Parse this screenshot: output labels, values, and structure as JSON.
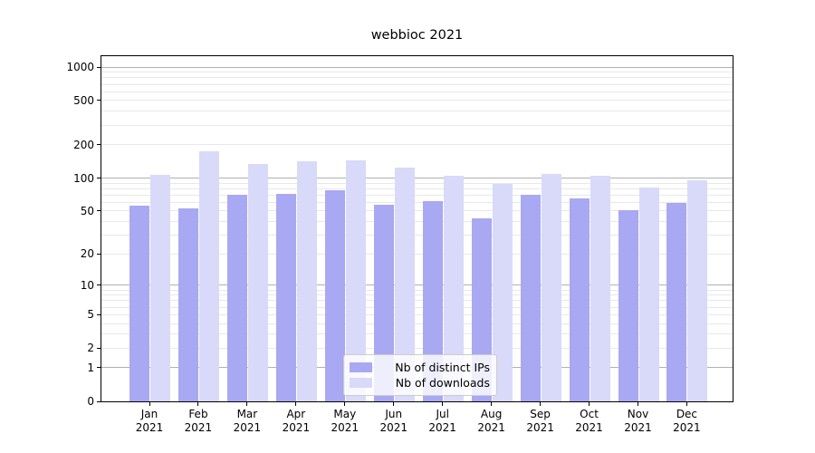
{
  "chart_data": {
    "type": "bar",
    "title": "webbioc 2021",
    "x_tick_months": [
      "Jan",
      "Feb",
      "Mar",
      "Apr",
      "May",
      "Jun",
      "Jul",
      "Aug",
      "Sep",
      "Oct",
      "Nov",
      "Dec"
    ],
    "x_tick_year": "2021",
    "series": [
      {
        "name": "Nb of distinct IPs",
        "color": "#a8a8f3",
        "values": [
          56,
          53,
          70,
          72,
          77,
          57,
          62,
          43,
          70,
          65,
          51,
          59
        ]
      },
      {
        "name": "Nb of downloads",
        "color": "#d9d9f9",
        "values": [
          106,
          175,
          133,
          143,
          145,
          125,
          105,
          88,
          109,
          105,
          82,
          95
        ]
      }
    ],
    "y_ticks": [
      0,
      1,
      2,
      5,
      10,
      20,
      50,
      100,
      200,
      500,
      1000
    ],
    "y_scale": "log1p",
    "ylim": [
      0,
      1250
    ],
    "xlabel": "",
    "ylabel": "",
    "grid": true,
    "legend_position": "lower-center",
    "colors": {
      "major_grid": "#b0b0b0",
      "minor_grid": "#e8e8e8",
      "axis": "#000000",
      "legend_border": "#cccccc",
      "background": "#ffffff"
    }
  }
}
